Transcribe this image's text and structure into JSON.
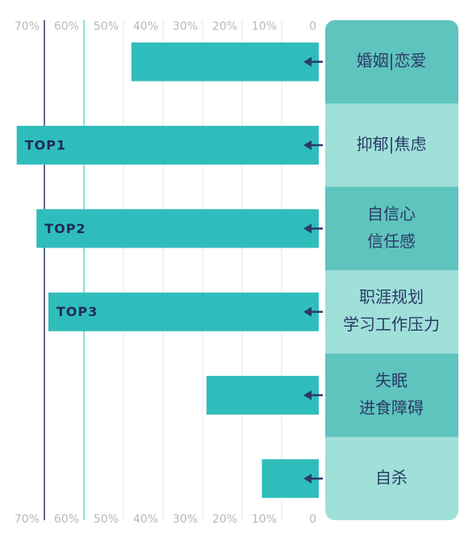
{
  "chart_data": {
    "type": "barh",
    "categories": [
      [
        "婚姻|恋爱"
      ],
      [
        "抑郁|焦虑"
      ],
      [
        "自信心",
        "信任感"
      ],
      [
        "职涯规划",
        "学习工作压力"
      ],
      [
        "失眠",
        "进食障碍"
      ],
      [
        "自杀"
      ]
    ],
    "values": [
      48,
      77,
      72,
      69,
      29,
      15
    ],
    "color": "#2fbdbb",
    "annotations": [
      {
        "category": 1,
        "text": "TOP1"
      },
      {
        "category": 2,
        "text": "TOP2"
      },
      {
        "category": 3,
        "text": "TOP3"
      }
    ],
    "xlim": [
      0,
      80
    ],
    "xticks": [
      {
        "value": 70,
        "label": "70%"
      },
      {
        "value": 60,
        "label": "60%"
      },
      {
        "value": 50,
        "label": "50%"
      },
      {
        "value": 40,
        "label": "40%"
      },
      {
        "value": 30,
        "label": "30%"
      },
      {
        "value": 20,
        "label": "20%"
      },
      {
        "value": 10,
        "label": "10%"
      },
      0
    ],
    "reversed_x": true,
    "grid": true,
    "highlight_lines": [
      {
        "value": 70,
        "color": "#2b3a67"
      },
      {
        "value": 60,
        "color": "#5fd8c9"
      }
    ],
    "panel_colors": [
      "#5ec4bd",
      "#9fe0d9"
    ]
  }
}
